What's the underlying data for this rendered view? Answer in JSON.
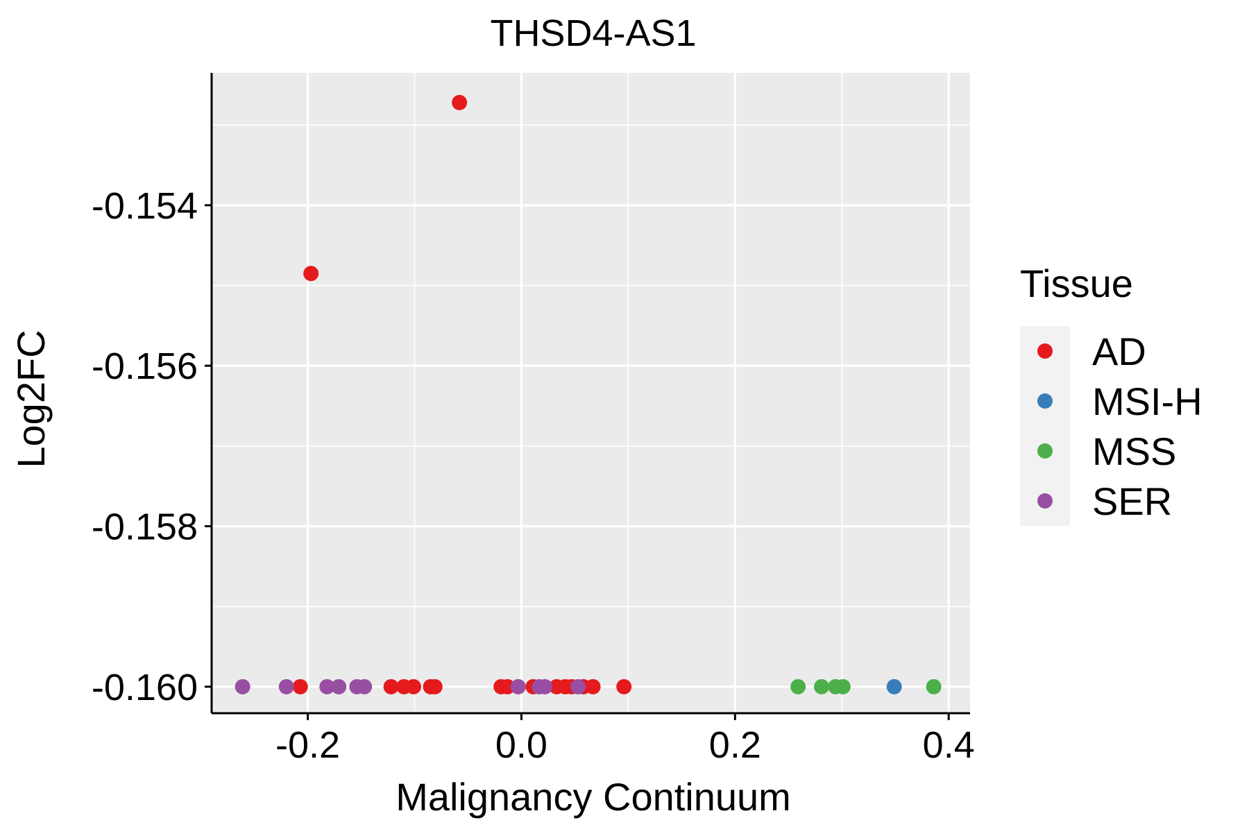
{
  "chart_data": {
    "type": "scatter",
    "title": "THSD4-AS1",
    "xlabel": "Malignancy Continuum",
    "ylabel": "Log2FC",
    "xlim": [
      -0.29,
      0.42
    ],
    "ylim": [
      -0.16033,
      -0.15235
    ],
    "x_ticks": [
      -0.2,
      0.0,
      0.2,
      0.4
    ],
    "x_tick_labels": [
      "-0.2",
      "0.0",
      "0.2",
      "0.4"
    ],
    "y_ticks": [
      -0.154,
      -0.156,
      -0.158,
      -0.16
    ],
    "y_tick_labels": [
      "-0.154",
      "-0.156",
      "-0.158",
      "-0.160"
    ],
    "grid": true,
    "legend": {
      "title": "Tissue",
      "position": "right",
      "entries": [
        {
          "label": "AD",
          "color": "#E41A1C"
        },
        {
          "label": "MSI-H",
          "color": "#377EB8"
        },
        {
          "label": "MSS",
          "color": "#4DAF4A"
        },
        {
          "label": "SER",
          "color": "#984EA3"
        }
      ]
    },
    "series": [
      {
        "name": "AD",
        "color": "#E41A1C",
        "points": [
          [
            -0.058,
            -0.15272
          ],
          [
            -0.197,
            -0.15485
          ],
          [
            -0.207,
            -0.16
          ],
          [
            -0.122,
            -0.16
          ],
          [
            -0.11,
            -0.16
          ],
          [
            -0.101,
            -0.16
          ],
          [
            -0.085,
            -0.16
          ],
          [
            -0.081,
            -0.16
          ],
          [
            -0.019,
            -0.16
          ],
          [
            -0.013,
            -0.16
          ],
          [
            0.011,
            -0.16
          ],
          [
            0.033,
            -0.16
          ],
          [
            0.041,
            -0.16
          ],
          [
            0.047,
            -0.16
          ],
          [
            0.058,
            -0.16
          ],
          [
            0.067,
            -0.16
          ],
          [
            0.096,
            -0.16
          ]
        ]
      },
      {
        "name": "MSI-H",
        "color": "#377EB8",
        "points": [
          [
            0.349,
            -0.16
          ]
        ]
      },
      {
        "name": "MSS",
        "color": "#4DAF4A",
        "points": [
          [
            0.259,
            -0.16
          ],
          [
            0.281,
            -0.16
          ],
          [
            0.294,
            -0.16
          ],
          [
            0.301,
            -0.16
          ],
          [
            0.386,
            -0.16
          ]
        ]
      },
      {
        "name": "SER",
        "color": "#984EA3",
        "points": [
          [
            -0.261,
            -0.16
          ],
          [
            -0.22,
            -0.16
          ],
          [
            -0.182,
            -0.16
          ],
          [
            -0.171,
            -0.16
          ],
          [
            -0.154,
            -0.16
          ],
          [
            -0.147,
            -0.16
          ],
          [
            -0.003,
            -0.16
          ],
          [
            0.017,
            -0.16
          ],
          [
            0.022,
            -0.16
          ],
          [
            0.053,
            -0.16
          ]
        ]
      }
    ]
  }
}
